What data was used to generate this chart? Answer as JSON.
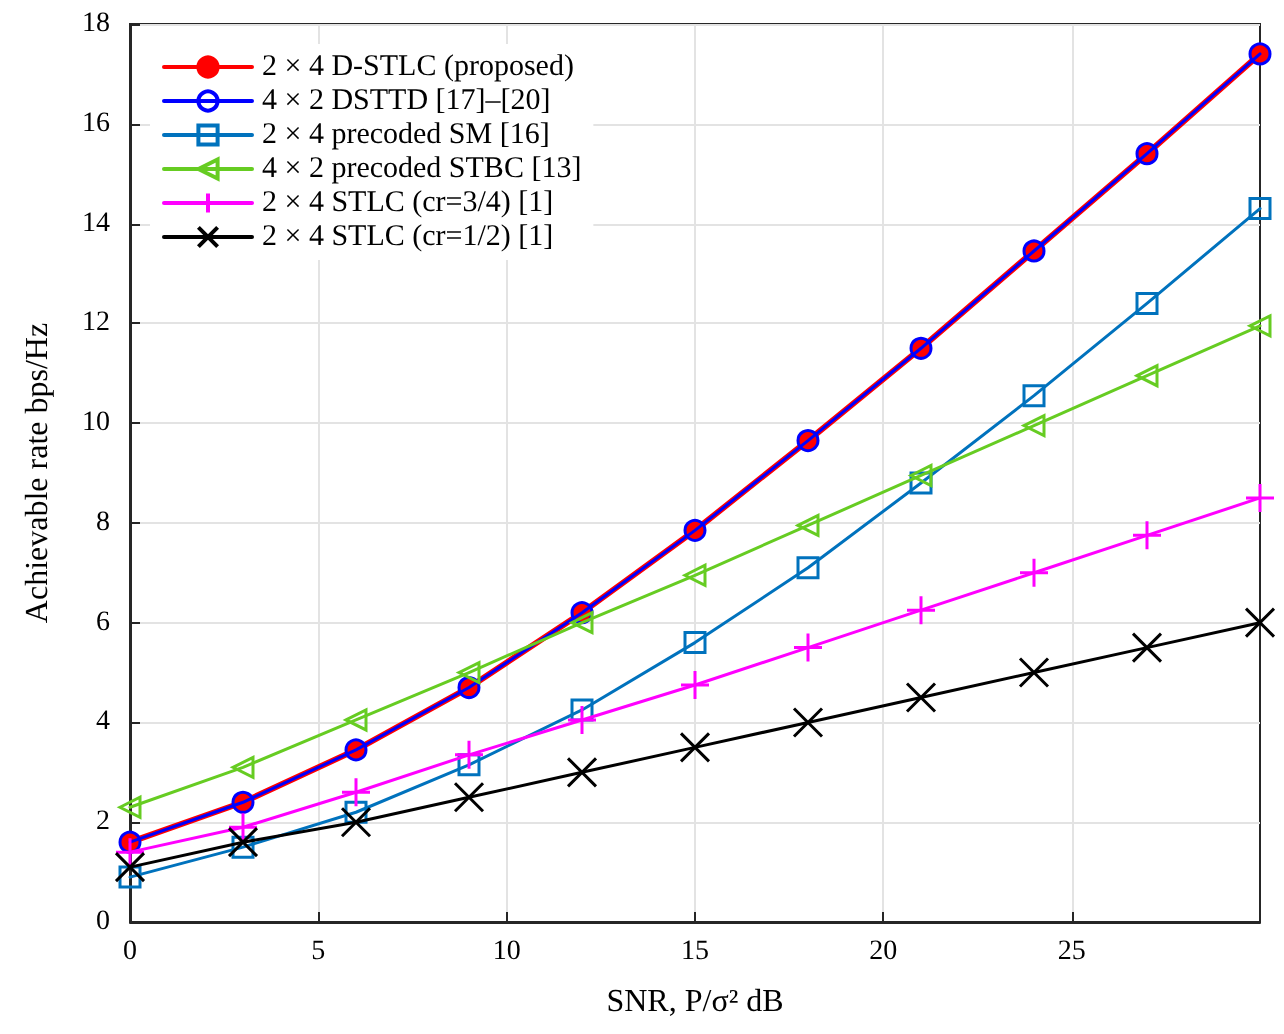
{
  "chart_data": {
    "type": "line",
    "xlabel": "SNR, P/σ² dB",
    "ylabel": "Achievable rate bps/Hz",
    "x": [
      0,
      3,
      6,
      9,
      12,
      15,
      18,
      21,
      24,
      27,
      30
    ],
    "xlim": [
      0,
      30
    ],
    "xticks": [
      0,
      5,
      10,
      15,
      20,
      25
    ],
    "ylim": [
      0,
      18
    ],
    "yticks": [
      0,
      2,
      4,
      6,
      8,
      10,
      12,
      14,
      16,
      18
    ],
    "grid": true,
    "legend": "top left",
    "series": [
      {
        "name": "2 × 4 D-STLC (proposed)",
        "color": "#ff0000",
        "marker": "circle",
        "values": [
          1.6,
          2.4,
          3.45,
          4.7,
          6.2,
          7.85,
          9.65,
          11.5,
          13.45,
          15.4,
          17.4
        ]
      },
      {
        "name": "4 × 2 DSTTD [17]–[20]",
        "color": "#0000ff",
        "marker": "circle",
        "values": [
          1.6,
          2.4,
          3.45,
          4.7,
          6.2,
          7.85,
          9.65,
          11.5,
          13.45,
          15.4,
          17.4
        ]
      },
      {
        "name": "2 × 4 precoded SM [16]",
        "color": "#0072bd",
        "marker": "square",
        "values": [
          0.9,
          1.5,
          2.2,
          3.15,
          4.25,
          5.6,
          7.1,
          8.8,
          10.55,
          12.4,
          14.3
        ]
      },
      {
        "name": "4 × 2 precoded STBC [13]",
        "color": "#66cc22",
        "marker": "triangle",
        "values": [
          2.3,
          3.1,
          4.05,
          5.0,
          6.0,
          6.95,
          7.95,
          8.95,
          9.95,
          10.95,
          11.95
        ]
      },
      {
        "name": "2 × 4 STLC (cr=3/4) [1]",
        "color": "#ff00ff",
        "marker": "plus",
        "values": [
          1.4,
          1.9,
          2.6,
          3.35,
          4.05,
          4.75,
          5.5,
          6.25,
          7.0,
          7.75,
          8.5
        ]
      },
      {
        "name": "2 × 4 STLC (cr=1/2) [1]",
        "color": "#000000",
        "marker": "cross",
        "values": [
          1.1,
          1.6,
          2.0,
          2.5,
          3.0,
          3.5,
          4.0,
          4.5,
          5.0,
          5.5,
          6.0
        ]
      }
    ]
  }
}
